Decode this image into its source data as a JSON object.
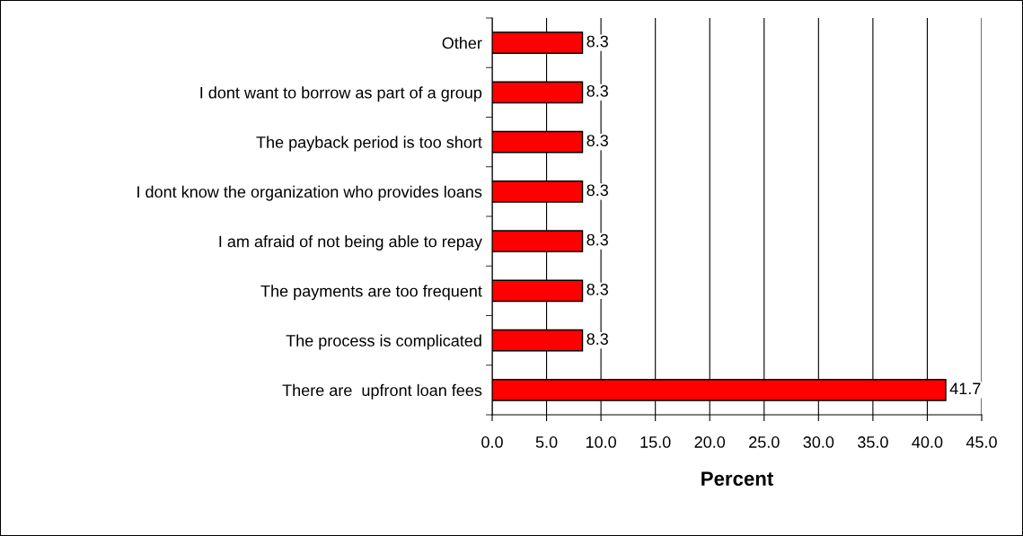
{
  "chart_data": {
    "type": "bar",
    "orientation": "horizontal",
    "xlabel": "Percent",
    "categories": [
      "Other",
      "I dont want to borrow as part of a group",
      "The payback period is too short",
      "I dont know the organization who provides loans",
      "I am afraid of not being able to repay",
      "The payments are too frequent",
      "The process is complicated",
      "There are  upfront loan fees"
    ],
    "values": [
      8.3,
      8.3,
      8.3,
      8.3,
      8.3,
      8.3,
      8.3,
      41.7
    ],
    "color": "#ff0000",
    "xlim": [
      0,
      45
    ],
    "xticks": [
      {
        "value": 0,
        "label": "0.0"
      },
      {
        "value": 5,
        "label": "5.0"
      },
      {
        "value": 10,
        "label": "10.0"
      },
      {
        "value": 15,
        "label": "15.0"
      },
      {
        "value": 20,
        "label": "20.0"
      },
      {
        "value": 25,
        "label": "25.0"
      },
      {
        "value": 30,
        "label": "30.0"
      },
      {
        "value": 35,
        "label": "35.0"
      },
      {
        "value": 40,
        "label": "40.0"
      },
      {
        "value": 45,
        "label": "45.0"
      }
    ],
    "grid": "x",
    "data_labels": true
  }
}
